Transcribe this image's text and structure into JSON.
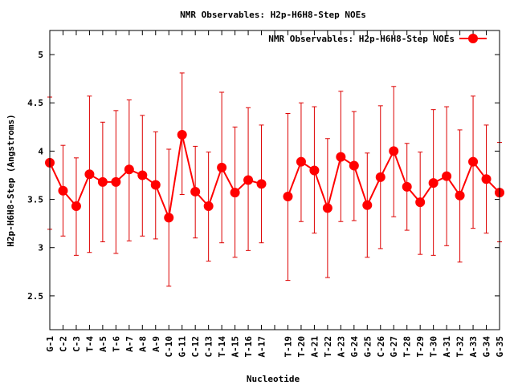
{
  "chart_data": {
    "type": "line",
    "title": "NMR Observables: H2p-H6H8-Step NOEs",
    "xlabel": "Nucleotide",
    "ylabel": "H2p-H6H8-Step (Angstroms)",
    "ylim": [
      2.15,
      5.25
    ],
    "yticks": [
      2.5,
      3,
      3.5,
      4,
      4.5,
      5
    ],
    "legend_position": "top-right",
    "grid": false,
    "colors": {
      "series": "#ff0000",
      "error_bars": "#dd0000",
      "axes": "#000000"
    },
    "categories": [
      "G-1",
      "C-2",
      "C-3",
      "T-4",
      "A-5",
      "T-6",
      "A-7",
      "A-8",
      "A-9",
      "C-10",
      "G-11",
      "C-12",
      "C-13",
      "T-14",
      "A-15",
      "T-16",
      "A-17",
      "",
      "T-19",
      "T-20",
      "A-21",
      "T-22",
      "A-23",
      "G-24",
      "G-25",
      "C-26",
      "G-27",
      "T-28",
      "T-29",
      "T-30",
      "A-31",
      "T-32",
      "A-33",
      "G-34",
      "G-35"
    ],
    "series": [
      {
        "name": "NMR Observables: H2p-H6H8-Step NOEs",
        "values": [
          3.88,
          3.59,
          3.43,
          3.76,
          3.68,
          3.68,
          3.81,
          3.75,
          3.65,
          3.31,
          4.17,
          3.58,
          3.43,
          3.83,
          3.57,
          3.7,
          3.66,
          null,
          3.53,
          3.89,
          3.8,
          3.41,
          3.94,
          3.85,
          3.44,
          3.73,
          4.0,
          3.63,
          3.47,
          3.67,
          3.74,
          3.54,
          3.89,
          3.71,
          3.57
        ],
        "upper": [
          4.56,
          4.06,
          3.93,
          4.57,
          4.3,
          4.42,
          4.53,
          4.37,
          4.2,
          4.02,
          4.81,
          4.05,
          3.99,
          4.61,
          4.25,
          4.45,
          4.27,
          null,
          4.39,
          4.5,
          4.46,
          4.13,
          4.62,
          4.41,
          3.98,
          4.47,
          4.67,
          4.08,
          3.99,
          4.43,
          4.46,
          4.22,
          4.57,
          4.27,
          4.09
        ],
        "lower": [
          3.19,
          3.12,
          2.92,
          2.95,
          3.06,
          2.94,
          3.07,
          3.12,
          3.09,
          2.6,
          3.55,
          3.1,
          2.86,
          3.05,
          2.9,
          2.97,
          3.05,
          null,
          2.66,
          3.27,
          3.15,
          2.69,
          3.27,
          3.28,
          2.9,
          2.99,
          3.32,
          3.18,
          2.93,
          2.92,
          3.02,
          2.85,
          3.2,
          3.15,
          3.06
        ]
      }
    ]
  }
}
